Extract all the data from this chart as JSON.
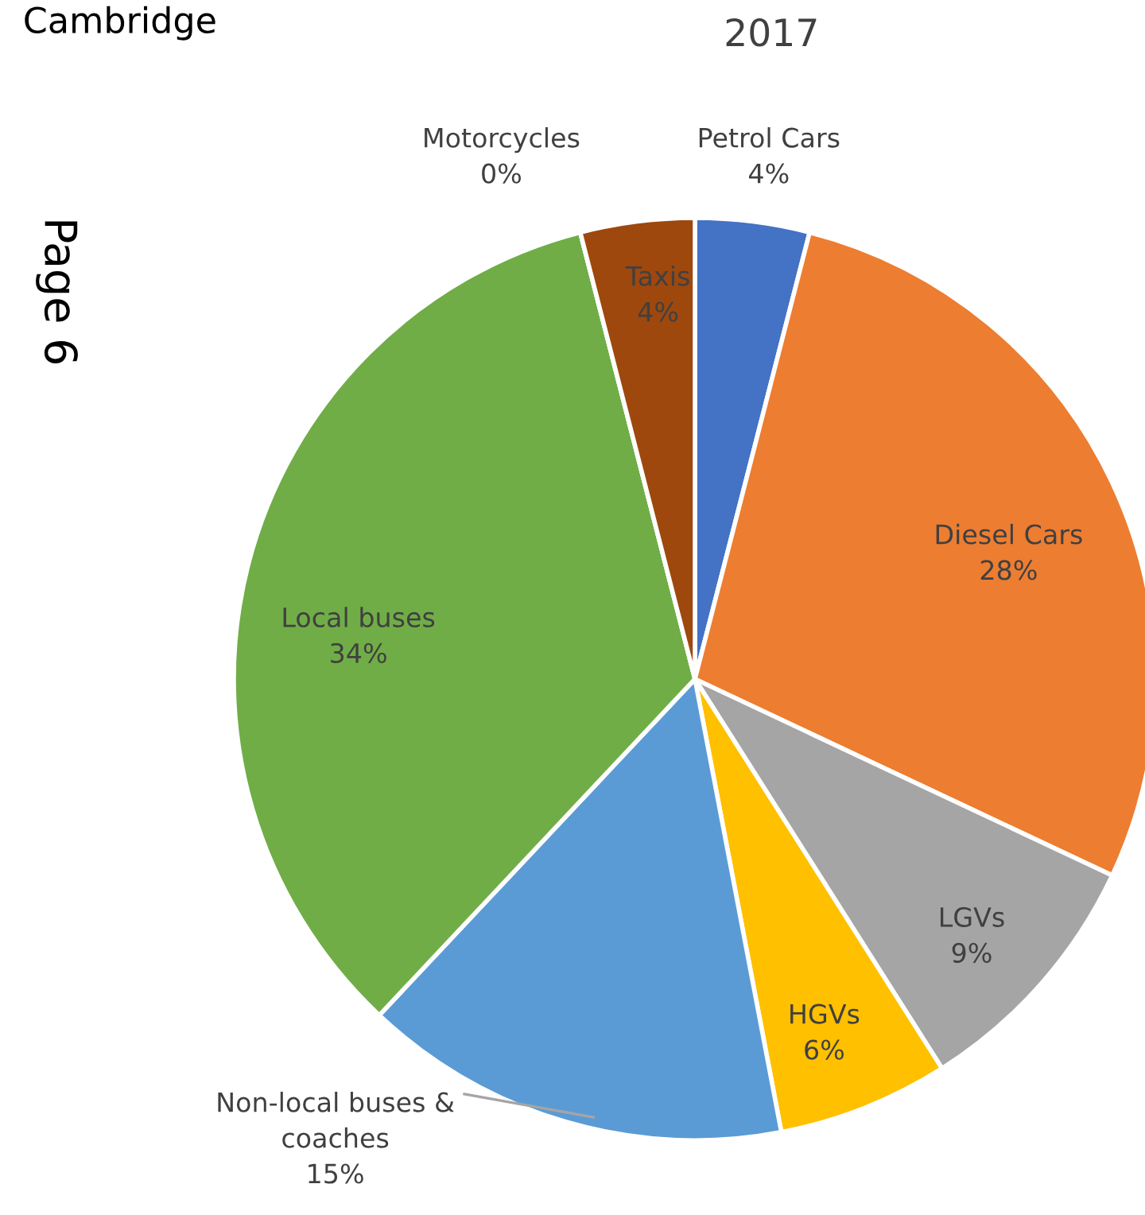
{
  "chart_data": {
    "type": "pie",
    "title": "2017",
    "categories": [
      "Petrol Cars",
      "Diesel Cars",
      "LGVs",
      "HGVs",
      "Non-local buses & coaches",
      "Local buses",
      "Motorcycles",
      "Taxis"
    ],
    "values": [
      4,
      28,
      9,
      6,
      15,
      34,
      0,
      4
    ],
    "value_labels": [
      "4%",
      "28%",
      "9%",
      "6%",
      "15%",
      "34%",
      "0%",
      "4%"
    ],
    "colors": [
      "#4472c4",
      "#ed7d31",
      "#a5a5a5",
      "#ffc000",
      "#5b9bd5",
      "#70ad47",
      "#264478",
      "#9e480e"
    ],
    "annotations": [
      "Cambridge",
      "Page 6"
    ]
  }
}
